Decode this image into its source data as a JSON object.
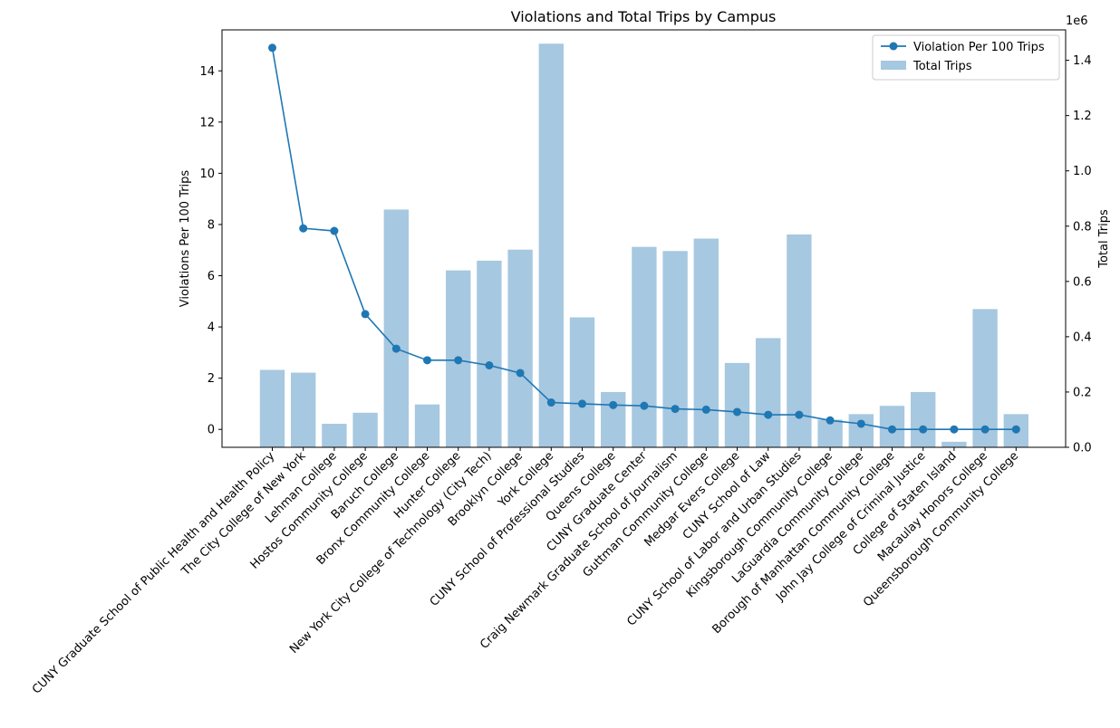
{
  "chart_data": {
    "type": "bar",
    "title": "Violations and Total Trips by Campus",
    "ylabel": "Violations Per 100 Trips",
    "y2label": "Total Trips",
    "y2_offset_label": "1e6",
    "ylim": [
      -0.7,
      15.6
    ],
    "y2lim": [
      0,
      1510000
    ],
    "yticks": [
      0,
      2,
      4,
      6,
      8,
      10,
      12,
      14
    ],
    "y2ticks": [
      0,
      0.2,
      0.4,
      0.6,
      0.8,
      1.0,
      1.2,
      1.4
    ],
    "legend_position": "top-right",
    "categories": [
      "CUNY Graduate School of Public Health and Health Policy",
      "The City College of New York",
      "Lehman College",
      "Hostos Community College",
      "Baruch College",
      "Bronx Community College",
      "Hunter College",
      "New York City College of Technology (City Tech)",
      "Brooklyn College",
      "York College",
      "CUNY School of Professional Studies",
      "Queens College",
      "CUNY Graduate Center",
      "Craig Newmark Graduate School of Journalism",
      "Guttman Community College",
      "Medgar Evers College",
      "CUNY School of Law",
      "CUNY School of Labor and Urban Studies",
      "Kingsborough Community College",
      "LaGuardia Community College",
      "Borough of Manhattan Community College",
      "John Jay College of Criminal Justice",
      "College of Staten Island",
      "Macaulay Honors College",
      "Queensborough Community College"
    ],
    "series": [
      {
        "name": "Violation Per 100 Trips",
        "type": "line",
        "axis": "left",
        "color": "#1f77b4",
        "values": [
          14.9,
          7.85,
          7.75,
          4.5,
          3.15,
          2.7,
          2.7,
          2.5,
          2.2,
          1.05,
          1.0,
          0.95,
          0.92,
          0.8,
          0.77,
          0.68,
          0.57,
          0.57,
          0.35,
          0.22,
          0.0,
          0.0,
          0.0,
          0.0,
          0.0
        ]
      },
      {
        "name": "Total Trips",
        "type": "bar",
        "axis": "right",
        "color": "#a6c8e0",
        "values": [
          280000,
          270000,
          85000,
          125000,
          860000,
          155000,
          640000,
          675000,
          715000,
          1460000,
          470000,
          200000,
          725000,
          710000,
          755000,
          305000,
          395000,
          770000,
          100000,
          120000,
          150000,
          200000,
          20000,
          500000,
          120000
        ]
      }
    ]
  }
}
